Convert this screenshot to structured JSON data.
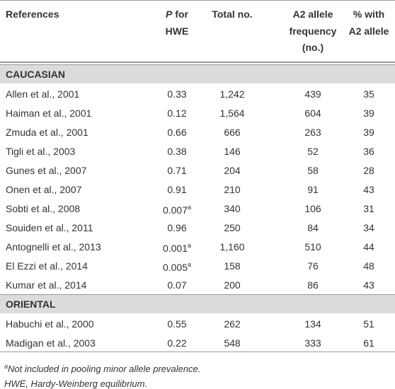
{
  "table": {
    "header": [
      {
        "lines": [
          "References"
        ]
      },
      {
        "italic": "P",
        "lines": [
          "for",
          "HWE"
        ]
      },
      {
        "lines": [
          "Total no."
        ]
      },
      {
        "lines": [
          "A2 allele",
          "frequency",
          "(no.)"
        ]
      },
      {
        "lines": [
          "% with",
          "A2 allele"
        ]
      }
    ],
    "sections": [
      {
        "name": "CAUCASIAN",
        "rows": [
          [
            "Allen et al., 2001",
            "0.33",
            "1,242",
            "439",
            "35"
          ],
          [
            "Haiman et al., 2001",
            "0.12",
            "1,564",
            "604",
            "39"
          ],
          [
            "Zmuda et al., 2001",
            "0.66",
            "666",
            "263",
            "39"
          ],
          [
            "Tigli et al., 2003",
            "0.38",
            "146",
            "52",
            "36"
          ],
          [
            "Gunes et al., 2007",
            "0.71",
            "204",
            "58",
            "28"
          ],
          [
            "Onen et al., 2007",
            "0.91",
            "210",
            "91",
            "43"
          ],
          [
            "Sobti et al., 2008",
            {
              "value": "0.007",
              "note": "a"
            },
            "340",
            "106",
            "31"
          ],
          [
            "Souiden et al., 2011",
            "0.96",
            "250",
            "84",
            "34"
          ],
          [
            "Antognelli et al., 2013",
            {
              "value": "0.001",
              "note": "a"
            },
            "1,160",
            "510",
            "44"
          ],
          [
            "El Ezzi et al., 2014",
            {
              "value": "0.005",
              "note": "a"
            },
            "158",
            "76",
            "48"
          ],
          [
            "Kumar et al., 2014",
            "0.07",
            "200",
            "86",
            "43"
          ]
        ]
      },
      {
        "name": "ORIENTAL",
        "rows": [
          [
            "Habuchi et al., 2000",
            "0.55",
            "262",
            "134",
            "51"
          ],
          [
            "Madigan et al., 2003",
            "0.22",
            "548",
            "333",
            "61"
          ]
        ]
      }
    ],
    "footnotes": [
      {
        "mark": "a",
        "text": "Not included in pooling minor allele prevalence."
      },
      {
        "text": "HWE, Hardy-Weinberg equilibrium."
      }
    ]
  }
}
